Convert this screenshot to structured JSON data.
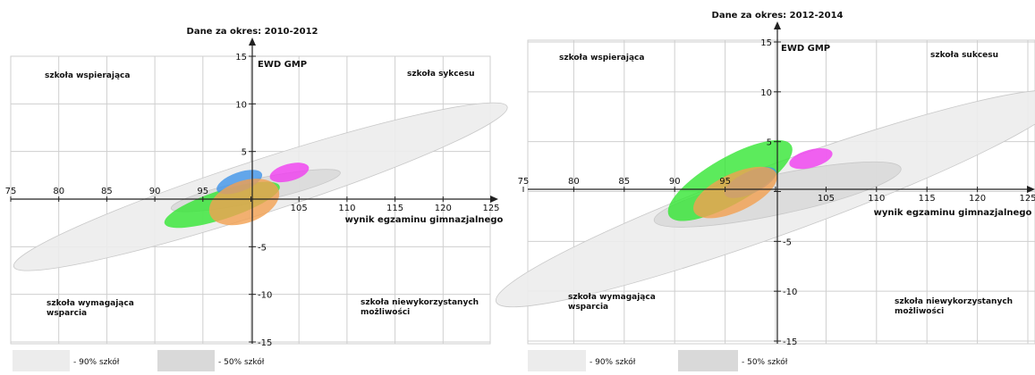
{
  "colors": {
    "grid": "#cfcfcf",
    "axis": "#222222",
    "range90": "#ececec",
    "range50": "#d9d9d9",
    "green": "#33e633",
    "blue": "#3f94e8",
    "magenta": "#f03cf0",
    "orange": "#f2a050"
  },
  "chart_data": [
    {
      "type": "scatter",
      "title": "Dane za okres: 2010-2012",
      "xlabel": "wynik egzaminu gimnazjalnego",
      "ylabel": "EWD GMP",
      "xlim": [
        75,
        125
      ],
      "ylim": [
        -15,
        15
      ],
      "x_ticks": [
        75,
        80,
        85,
        90,
        95,
        100,
        105,
        110,
        115,
        120,
        125
      ],
      "y_ticks": [
        -15,
        -10,
        -5,
        0,
        5,
        10,
        15
      ],
      "x_tick_labels": [
        "75",
        "80",
        "85",
        "90",
        "95",
        "",
        "105",
        "110",
        "115",
        "120",
        "125"
      ],
      "y_tick_labels": [
        "-15",
        "-10",
        "-5",
        "",
        "5",
        "10",
        "15"
      ],
      "grid": true,
      "quadrant_labels": {
        "top_left": "szkoła wspierająca",
        "top_right": "szkoła sykcesu",
        "bottom_left": "szkoła wymagająca wsparcia",
        "bottom_right": "szkoła niewykorzystanych możliwości"
      },
      "legend": [
        {
          "label": "- 90% szkół",
          "color": "#ececec"
        },
        {
          "label": "- 50% szkół",
          "color": "#d9d9d9"
        }
      ],
      "ellipses": [
        {
          "name": "90%",
          "color": "#ececec",
          "cx": 101.0,
          "cy": 1.3,
          "rx": 27.0,
          "ry": 2.8,
          "angle_deg": -18
        },
        {
          "name": "50%",
          "color": "#d9d9d9",
          "cx": 100.5,
          "cy": 0.9,
          "rx": 9.0,
          "ry": 1.2,
          "angle_deg": -12
        },
        {
          "name": "green",
          "color": "#33e633",
          "cx": 97.0,
          "cy": -0.6,
          "rx": 6.3,
          "ry": 1.5,
          "angle_deg": -18
        },
        {
          "name": "blue",
          "color": "#3f94e8",
          "cx": 98.8,
          "cy": 1.8,
          "rx": 2.5,
          "ry": 1.0,
          "angle_deg": -20
        },
        {
          "name": "magenta",
          "color": "#f03cf0",
          "cx": 104.0,
          "cy": 2.8,
          "rx": 2.1,
          "ry": 0.9,
          "angle_deg": -15
        },
        {
          "name": "orange",
          "color": "#f2a050",
          "cx": 99.3,
          "cy": -0.3,
          "rx": 3.8,
          "ry": 2.2,
          "angle_deg": -20
        }
      ]
    },
    {
      "type": "scatter",
      "title": "Dane za okres: 2012-2014",
      "xlabel": "wynik egzaminu gimnazjalnego",
      "ylabel": "EWD GMP",
      "xlim": [
        75,
        125
      ],
      "ylim": [
        -15,
        15
      ],
      "x_ticks": [
        75,
        80,
        85,
        90,
        95,
        100,
        105,
        110,
        115,
        120,
        125
      ],
      "y_ticks": [
        -15,
        -10,
        -5,
        0,
        5,
        10,
        15
      ],
      "x_tick_labels": [
        "75",
        "80",
        "85",
        "90",
        "95",
        "",
        "105",
        "110",
        "115",
        "120",
        "125"
      ],
      "y_tick_labels": [
        "-15",
        "-10",
        "-5",
        "",
        "5",
        "10",
        "15"
      ],
      "grid": true,
      "quadrant_labels": {
        "top_left": "szkoła wspierająca",
        "top_right": "szkoła sukcesu",
        "bottom_left": "szkoła wymagająca wsparcia",
        "bottom_right": "szkoła niewykorzystanych możliwości"
      },
      "legend": [
        {
          "label": "- 90% szkół",
          "color": "#ececec"
        },
        {
          "label": "- 50% szkół",
          "color": "#d9d9d9"
        }
      ],
      "ellipses": [
        {
          "name": "90%",
          "color": "#ececec",
          "cx": 100.5,
          "cy": -0.7,
          "rx": 30.0,
          "ry": 3.5,
          "angle_deg": -20
        },
        {
          "name": "50%",
          "color": "#d9d9d9",
          "cx": 100.2,
          "cy": -0.3,
          "rx": 12.5,
          "ry": 2.0,
          "angle_deg": -12
        },
        {
          "name": "green",
          "color": "#33e633",
          "cx": 95.5,
          "cy": 1.1,
          "rx": 7.0,
          "ry": 2.3,
          "angle_deg": -30
        },
        {
          "name": "blue",
          "color": "#3f94e8",
          "cx": 97.5,
          "cy": 0.9,
          "rx": 2.8,
          "ry": 1.1,
          "angle_deg": -25
        },
        {
          "name": "magenta",
          "color": "#f03cf0",
          "cx": 103.5,
          "cy": 3.3,
          "rx": 2.2,
          "ry": 0.9,
          "angle_deg": -15
        },
        {
          "name": "orange",
          "color": "#f2a050",
          "cx": 96.0,
          "cy": -0.1,
          "rx": 4.5,
          "ry": 1.9,
          "angle_deg": -25
        }
      ]
    }
  ]
}
